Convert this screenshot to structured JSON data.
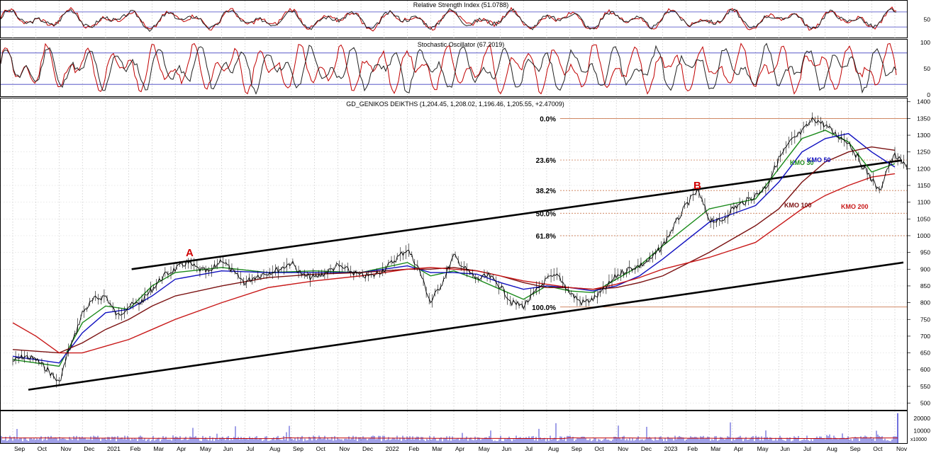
{
  "panels": {
    "rsi": {
      "title": "Relative Strength Index (51.0788)",
      "ticks": [
        "50"
      ],
      "ref_lines": [
        30,
        70
      ]
    },
    "stoch": {
      "title": "Stochastic Oscillator (67.2019)",
      "ticks": [
        "100",
        "50",
        "0"
      ],
      "ref_lines": [
        20,
        80
      ]
    },
    "price": {
      "title": "GD_GENIKOS DEIKTHS (1,204.45, 1,208.02, 1,196.46, 1,205.55, +2.47009)"
    },
    "volume": {
      "ticks": [
        "20000",
        "10000"
      ],
      "unit_label": "x10000"
    }
  },
  "fib_levels": [
    {
      "label": "0.0%",
      "value": 1350
    },
    {
      "label": "23.6%",
      "value": 1226
    },
    {
      "label": "38.2%",
      "value": 1135
    },
    {
      "label": "50.0%",
      "value": 1067
    },
    {
      "label": "61.8%",
      "value": 1000
    },
    {
      "label": "100.0%",
      "value": 787
    }
  ],
  "annotations": {
    "a": "A",
    "b": "B"
  },
  "ma_labels": {
    "kmo30": {
      "text": "KMO 30",
      "color": "#1a8a1a"
    },
    "kmo50": {
      "text": "KMO 50",
      "color": "#1010c0"
    },
    "kmo100": {
      "text": "KMO 100",
      "color": "#7a1010"
    },
    "kmo200": {
      "text": "KMO 200",
      "color": "#c81818"
    }
  },
  "chart_data": {
    "type": "line",
    "title": "GD_GENIKOS DEIKTHS (1,204.45, 1,208.02, 1,196.46, 1,205.55, +2.47009)",
    "y_axis": {
      "ticks": [
        1400,
        1350,
        1300,
        1250,
        1200,
        1150,
        1100,
        1050,
        1000,
        950,
        900,
        850,
        800,
        750,
        700,
        650,
        600,
        550,
        500
      ],
      "ylim": [
        480,
        1410
      ]
    },
    "x_axis": {
      "ticks": [
        "Sep",
        "Oct",
        "Nov",
        "Dec",
        "2021",
        "Feb",
        "Mar",
        "Apr",
        "May",
        "Jun",
        "Jul",
        "Aug",
        "Sep",
        "Oct",
        "Nov",
        "Dec",
        "2022",
        "Feb",
        "Mar",
        "Apr",
        "May",
        "Jun",
        "Jul",
        "Aug",
        "Sep",
        "Oct",
        "Nov",
        "Dec",
        "2023",
        "Feb",
        "Mar",
        "Apr",
        "May",
        "Jun",
        "Jul",
        "Aug",
        "Sep",
        "Oct",
        "Nov"
      ]
    },
    "price_series": {
      "name": "GD_GENIKOS DEIKTHS",
      "points": [
        [
          "Sep",
          625
        ],
        [
          "Sep",
          640
        ],
        [
          "Oct",
          630
        ],
        [
          "Oct",
          600
        ],
        [
          "Nov",
          560
        ],
        [
          "Nov",
          640
        ],
        [
          "Nov",
          700
        ],
        [
          "Dec",
          770
        ],
        [
          "Dec",
          810
        ],
        [
          "2021",
          820
        ],
        [
          "2021",
          760
        ],
        [
          "Feb",
          790
        ],
        [
          "Feb",
          800
        ],
        [
          "Mar",
          840
        ],
        [
          "Mar",
          880
        ],
        [
          "Apr",
          900
        ],
        [
          "Apr",
          920
        ],
        [
          "May",
          900
        ],
        [
          "May",
          890
        ],
        [
          "Jun",
          930
        ],
        [
          "Jun",
          890
        ],
        [
          "Jul",
          860
        ],
        [
          "Jul",
          880
        ],
        [
          "Aug",
          890
        ],
        [
          "Aug",
          900
        ],
        [
          "Sep",
          920
        ],
        [
          "Sep",
          880
        ],
        [
          "Oct",
          875
        ],
        [
          "Oct",
          890
        ],
        [
          "Nov",
          910
        ],
        [
          "Nov",
          895
        ],
        [
          "Dec",
          880
        ],
        [
          "Dec",
          880
        ],
        [
          "2022",
          900
        ],
        [
          "2022",
          930
        ],
        [
          "Feb",
          960
        ],
        [
          "Feb",
          900
        ],
        [
          "Mar",
          800
        ],
        [
          "Mar",
          860
        ],
        [
          "Apr",
          940
        ],
        [
          "Apr",
          900
        ],
        [
          "May",
          870
        ],
        [
          "May",
          880
        ],
        [
          "Jun",
          850
        ],
        [
          "Jun",
          800
        ],
        [
          "Jul",
          790
        ],
        [
          "Jul",
          830
        ],
        [
          "Aug",
          870
        ],
        [
          "Aug",
          880
        ],
        [
          "Sep",
          830
        ],
        [
          "Sep",
          800
        ],
        [
          "Oct",
          810
        ],
        [
          "Oct",
          840
        ],
        [
          "Nov",
          880
        ],
        [
          "Nov",
          900
        ],
        [
          "Dec",
          910
        ],
        [
          "Dec",
          930
        ],
        [
          "2023",
          970
        ],
        [
          "2023",
          1030
        ],
        [
          "Feb",
          1090
        ],
        [
          "Feb",
          1135
        ],
        [
          "Mar",
          1050
        ],
        [
          "Mar",
          1040
        ],
        [
          "Apr",
          1080
        ],
        [
          "Apr",
          1100
        ],
        [
          "May",
          1120
        ],
        [
          "May",
          1150
        ],
        [
          "Jun",
          1230
        ],
        [
          "Jun",
          1280
        ],
        [
          "Jul",
          1310
        ],
        [
          "Jul",
          1350
        ],
        [
          "Aug",
          1330
        ],
        [
          "Aug",
          1300
        ],
        [
          "Sep",
          1280
        ],
        [
          "Sep",
          1220
        ],
        [
          "Oct",
          1170
        ],
        [
          "Oct",
          1130
        ],
        [
          "Oct",
          1200
        ],
        [
          "Nov",
          1240
        ],
        [
          "Nov",
          1205
        ]
      ]
    },
    "moving_averages": [
      {
        "name": "KMO 30",
        "color": "#1a8a1a",
        "points": [
          [
            "Sep",
            630
          ],
          [
            "Nov",
            610
          ],
          [
            "Dec",
            740
          ],
          [
            "2021",
            790
          ],
          [
            "Feb",
            780
          ],
          [
            "Mar",
            850
          ],
          [
            "Apr",
            890
          ],
          [
            "Jun",
            905
          ],
          [
            "Aug",
            890
          ],
          [
            "Oct",
            895
          ],
          [
            "Dec",
            890
          ],
          [
            "Feb",
            920
          ],
          [
            "Mar",
            880
          ],
          [
            "Apr",
            895
          ],
          [
            "May",
            870
          ],
          [
            "Jun",
            840
          ],
          [
            "Jul",
            810
          ],
          [
            "Aug",
            850
          ],
          [
            "Sep",
            835
          ],
          [
            "Oct",
            830
          ],
          [
            "Nov",
            870
          ],
          [
            "Dec",
            910
          ],
          [
            "2023",
            970
          ],
          [
            "Mar",
            1080
          ],
          [
            "May",
            1110
          ],
          [
            "Jun",
            1200
          ],
          [
            "Jul",
            1290
          ],
          [
            "Aug",
            1315
          ],
          [
            "Sep",
            1280
          ],
          [
            "Oct",
            1190
          ],
          [
            "Nov",
            1215
          ]
        ]
      },
      {
        "name": "KMO 50",
        "color": "#1010c0",
        "points": [
          [
            "Sep",
            640
          ],
          [
            "Nov",
            620
          ],
          [
            "Dec",
            710
          ],
          [
            "2021",
            770
          ],
          [
            "Feb",
            780
          ],
          [
            "Mar",
            820
          ],
          [
            "Apr",
            870
          ],
          [
            "Jun",
            895
          ],
          [
            "Aug",
            890
          ],
          [
            "Oct",
            890
          ],
          [
            "Dec",
            890
          ],
          [
            "Feb",
            910
          ],
          [
            "Mar",
            890
          ],
          [
            "Apr",
            890
          ],
          [
            "May",
            885
          ],
          [
            "Jun",
            860
          ],
          [
            "Jul",
            840
          ],
          [
            "Aug",
            850
          ],
          [
            "Sep",
            845
          ],
          [
            "Oct",
            835
          ],
          [
            "Nov",
            850
          ],
          [
            "Dec",
            880
          ],
          [
            "2023",
            930
          ],
          [
            "Mar",
            1040
          ],
          [
            "May",
            1090
          ],
          [
            "Jun",
            1160
          ],
          [
            "Jul",
            1250
          ],
          [
            "Aug",
            1290
          ],
          [
            "Sep",
            1305
          ],
          [
            "Oct",
            1250
          ],
          [
            "Nov",
            1205
          ]
        ]
      },
      {
        "name": "KMO 100",
        "color": "#7a1010",
        "points": [
          [
            "Sep",
            660
          ],
          [
            "Nov",
            650
          ],
          [
            "Dec",
            680
          ],
          [
            "2021",
            720
          ],
          [
            "Feb",
            750
          ],
          [
            "Mar",
            790
          ],
          [
            "Apr",
            820
          ],
          [
            "Jun",
            850
          ],
          [
            "Aug",
            875
          ],
          [
            "Oct",
            885
          ],
          [
            "Dec",
            890
          ],
          [
            "Feb",
            900
          ],
          [
            "Mar",
            900
          ],
          [
            "Apr",
            905
          ],
          [
            "May",
            895
          ],
          [
            "Jun",
            880
          ],
          [
            "Jul",
            860
          ],
          [
            "Aug",
            845
          ],
          [
            "Sep",
            845
          ],
          [
            "Oct",
            840
          ],
          [
            "Nov",
            845
          ],
          [
            "Dec",
            860
          ],
          [
            "2023",
            880
          ],
          [
            "Mar",
            950
          ],
          [
            "May",
            1030
          ],
          [
            "Jun",
            1080
          ],
          [
            "Jul",
            1160
          ],
          [
            "Aug",
            1220
          ],
          [
            "Sep",
            1250
          ],
          [
            "Oct",
            1265
          ],
          [
            "Nov",
            1255
          ]
        ]
      },
      {
        "name": "KMO 200",
        "color": "#c81818",
        "points": [
          [
            "Sep",
            740
          ],
          [
            "Oct",
            700
          ],
          [
            "Nov",
            650
          ],
          [
            "Dec",
            650
          ],
          [
            "2021",
            670
          ],
          [
            "Feb",
            690
          ],
          [
            "Mar",
            720
          ],
          [
            "Apr",
            750
          ],
          [
            "Jun",
            800
          ],
          [
            "Aug",
            845
          ],
          [
            "Oct",
            865
          ],
          [
            "Dec",
            880
          ],
          [
            "Feb",
            900
          ],
          [
            "Mar",
            905
          ],
          [
            "Apr",
            900
          ],
          [
            "May",
            895
          ],
          [
            "Jun",
            880
          ],
          [
            "Jul",
            865
          ],
          [
            "Aug",
            855
          ],
          [
            "Sep",
            845
          ],
          [
            "Oct",
            840
          ],
          [
            "Nov",
            855
          ],
          [
            "Dec",
            875
          ],
          [
            "2023",
            900
          ],
          [
            "Mar",
            935
          ],
          [
            "May",
            980
          ],
          [
            "Jun",
            1030
          ],
          [
            "Jul",
            1080
          ],
          [
            "Aug",
            1120
          ],
          [
            "Sep",
            1150
          ],
          [
            "Oct",
            1175
          ],
          [
            "Nov",
            1185
          ]
        ]
      }
    ],
    "trendlines": [
      {
        "name": "upper channel",
        "from": [
          "Feb",
          900
        ],
        "to": [
          "Nov",
          1225
        ]
      },
      {
        "name": "lower channel",
        "from": [
          "Sep",
          540
        ],
        "to": [
          "Nov",
          920
        ]
      }
    ]
  }
}
